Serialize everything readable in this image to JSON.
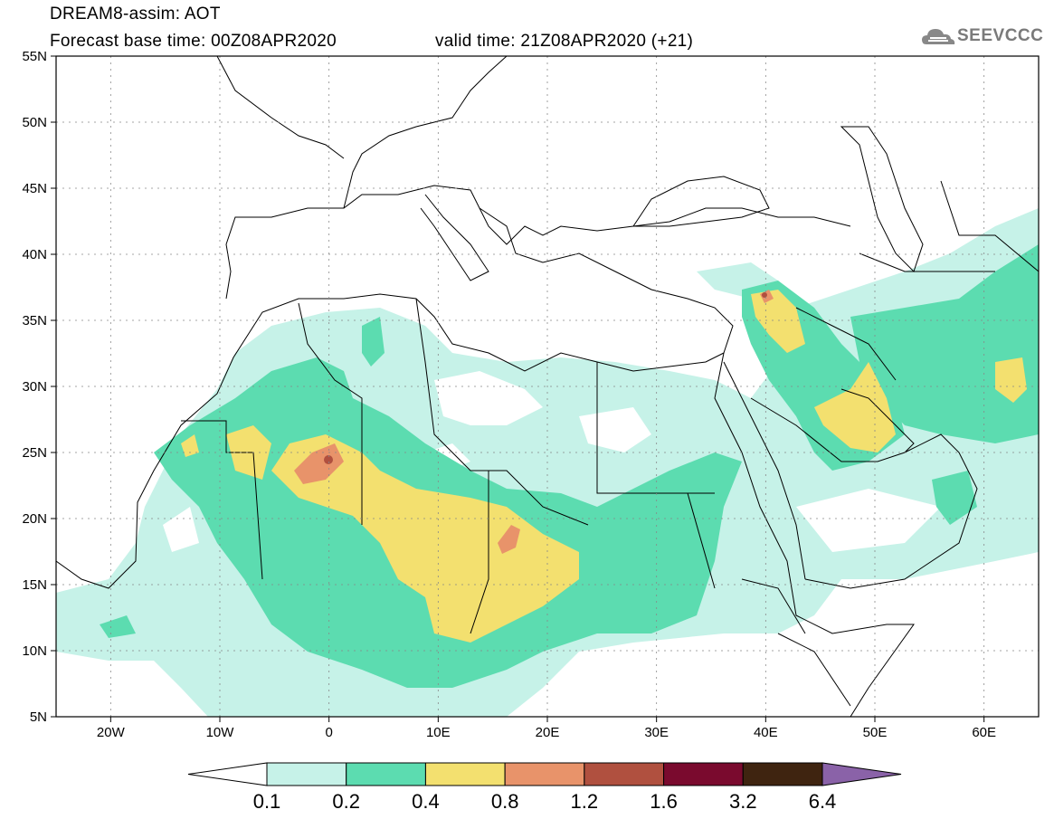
{
  "header": {
    "title_line1": "DREAM8-assim: AOT",
    "title_line2": "Forecast base time: 00Z08APR2020",
    "title_line3": "valid time: 21Z08APR2020 (+21)",
    "logo_text": "SEEVCCC",
    "logo_icon": "cloud-icon"
  },
  "map": {
    "lat_labels": [
      "55N",
      "50N",
      "45N",
      "40N",
      "35N",
      "30N",
      "25N",
      "20N",
      "15N",
      "10N",
      "5N"
    ],
    "lon_labels": [
      "20W",
      "10W",
      "0",
      "10E",
      "20E",
      "30E",
      "40E",
      "50E",
      "60E"
    ],
    "lat_range": [
      5,
      55
    ],
    "lon_range": [
      -25,
      65
    ],
    "gridlines": "dotted"
  },
  "colorbar": {
    "ticks": [
      "0.1",
      "0.2",
      "0.4",
      "0.8",
      "1.2",
      "1.6",
      "3.2",
      "6.4"
    ],
    "colors": [
      "#ffffff",
      "#c6f2e8",
      "#5cdcb0",
      "#f3e06f",
      "#e8936a",
      "#b0503f",
      "#7a0a2e",
      "#3f2410",
      "#8a62a8"
    ]
  }
}
